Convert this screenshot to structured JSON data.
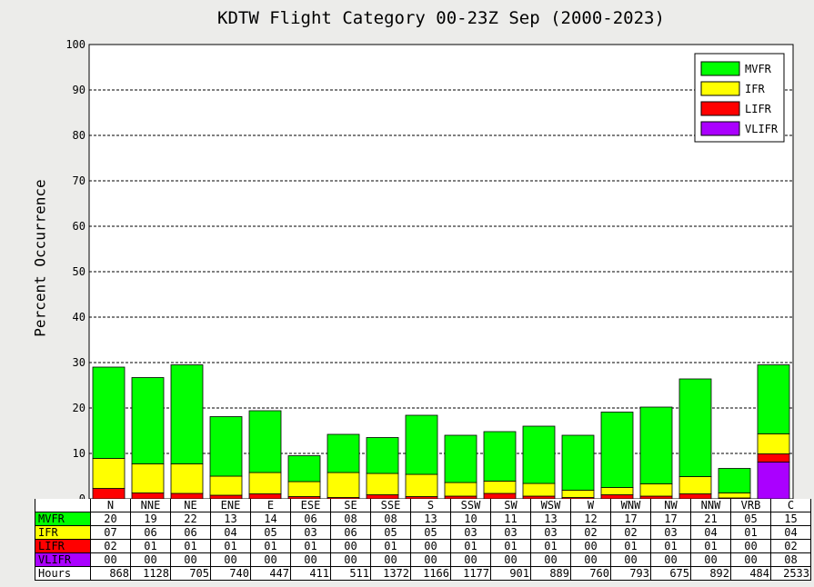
{
  "chart_data": {
    "type": "bar",
    "stacked": true,
    "title": "KDTW Flight Category 00-23Z Sep (2000-2023)",
    "ylabel": "Percent Occurrence",
    "xlabel": "",
    "ylim": [
      0,
      100
    ],
    "yticks": [
      "0",
      "10",
      "20",
      "30",
      "40",
      "50",
      "60",
      "70",
      "80",
      "90",
      "100"
    ],
    "grid": "horizontal dashed",
    "legend_position": "top-right",
    "categories": [
      "N",
      "NNE",
      "NE",
      "ENE",
      "E",
      "ESE",
      "SE",
      "SSE",
      "S",
      "SSW",
      "SW",
      "WSW",
      "W",
      "WNW",
      "NW",
      "NNW",
      "VRB",
      "C"
    ],
    "series": [
      {
        "name": "VLIFR",
        "color": "#aa00ff",
        "values": [
          0,
          0,
          0,
          0,
          0,
          0,
          0,
          0,
          0,
          0,
          0,
          0,
          0,
          0,
          0,
          0,
          0,
          8.1
        ],
        "labels": [
          "00",
          "00",
          "00",
          "00",
          "00",
          "00",
          "00",
          "00",
          "00",
          "00",
          "00",
          "00",
          "00",
          "00",
          "00",
          "00",
          "00",
          "08"
        ]
      },
      {
        "name": "LIFR",
        "color": "#ff0000",
        "values": [
          2.3,
          1.3,
          1.2,
          0.8,
          1.1,
          0.5,
          0.3,
          0.9,
          0.5,
          0.6,
          1.2,
          0.6,
          0.3,
          0.9,
          0.6,
          1.1,
          0.2,
          1.8
        ],
        "labels": [
          "02",
          "01",
          "01",
          "01",
          "01",
          "01",
          "00",
          "01",
          "00",
          "01",
          "01",
          "01",
          "00",
          "01",
          "01",
          "01",
          "00",
          "02"
        ]
      },
      {
        "name": "IFR",
        "color": "#ffff00",
        "values": [
          6.6,
          6.4,
          6.5,
          4.2,
          4.7,
          3.3,
          5.5,
          4.7,
          4.9,
          3.0,
          2.7,
          2.8,
          1.6,
          1.6,
          2.7,
          3.8,
          1.1,
          4.4
        ],
        "labels": [
          "07",
          "06",
          "06",
          "04",
          "05",
          "03",
          "06",
          "05",
          "05",
          "03",
          "03",
          "03",
          "02",
          "02",
          "03",
          "04",
          "01",
          "04"
        ]
      },
      {
        "name": "MVFR",
        "color": "#00ff00",
        "values": [
          20.1,
          19.0,
          21.8,
          13.1,
          13.6,
          5.7,
          8.4,
          7.9,
          13.0,
          10.4,
          10.9,
          12.6,
          12.1,
          16.6,
          16.9,
          21.5,
          5.4,
          15.2
        ],
        "labels": [
          "20",
          "19",
          "22",
          "13",
          "14",
          "06",
          "08",
          "08",
          "13",
          "10",
          "11",
          "13",
          "12",
          "17",
          "17",
          "21",
          "05",
          "15"
        ]
      }
    ],
    "hours": [
      "868",
      "1128",
      "705",
      "740",
      "447",
      "411",
      "511",
      "1372",
      "1166",
      "1177",
      "901",
      "889",
      "760",
      "793",
      "675",
      "892",
      "484",
      "2533"
    ],
    "table_rows": [
      "MVFR",
      "IFR",
      "LIFR",
      "VLIFR"
    ],
    "hours_label": "Hours"
  }
}
